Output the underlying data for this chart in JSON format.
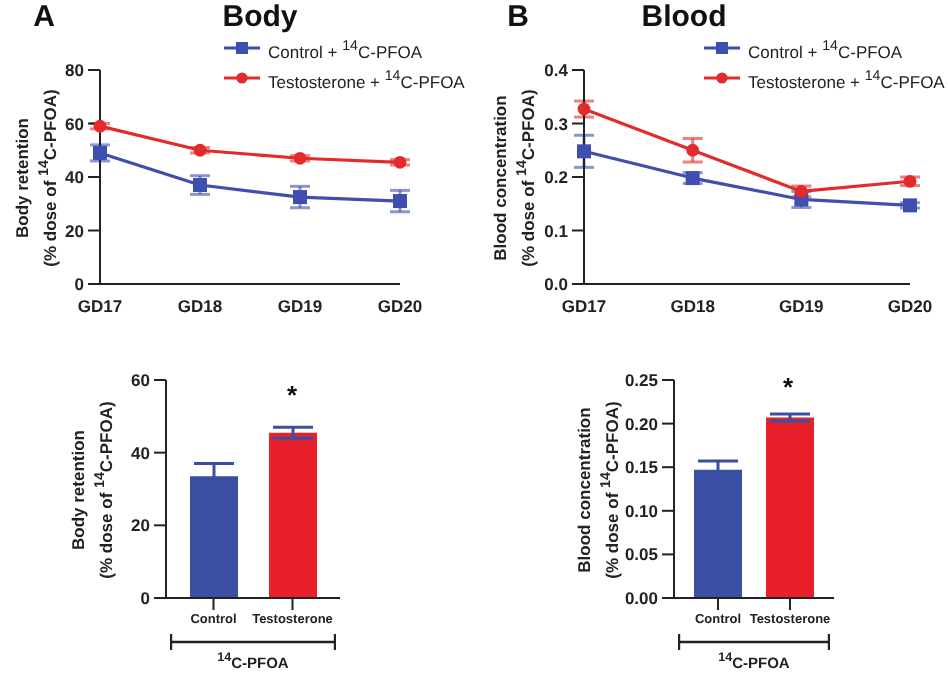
{
  "chart_data": [
    {
      "type": "line",
      "title": "Body",
      "annotations": [
        "A"
      ],
      "ylabel": "Body retention\n(% dose of $^{14}$C-PFOA)",
      "categories": [
        "GD17",
        "GD18",
        "GD19",
        "GD20"
      ],
      "series": [
        {
          "name": "Control + $^{14}$C-PFOA",
          "color": "#3f4fb0",
          "marker": "square",
          "values": [
            49,
            37,
            32.5,
            31
          ],
          "errors": [
            3,
            3.5,
            4,
            4
          ]
        },
        {
          "name": "Testosterone + $^{14}$C-PFOA",
          "color": "#e32b2b",
          "marker": "circle",
          "values": [
            59,
            50,
            47,
            45.5
          ],
          "errors": [
            1,
            1,
            1,
            1
          ]
        }
      ],
      "ylim": [
        0,
        80
      ],
      "yticks": [
        0,
        20,
        40,
        60,
        80
      ],
      "legend": "top right"
    },
    {
      "type": "line",
      "title": "Blood",
      "annotations": [
        "B"
      ],
      "ylabel": "Blood concentration\n(% dose of $^{14}$C-PFOA)",
      "categories": [
        "GD17",
        "GD18",
        "GD19",
        "GD20"
      ],
      "series": [
        {
          "name": "Control + $^{14}$C-PFOA",
          "color": "#3f4fb0",
          "marker": "square",
          "values": [
            0.248,
            0.198,
            0.158,
            0.147
          ],
          "errors": [
            0.03,
            0.01,
            0.015,
            0.005
          ]
        },
        {
          "name": "Testosterone + $^{14}$C-PFOA",
          "color": "#e32b2b",
          "marker": "circle",
          "values": [
            0.327,
            0.25,
            0.173,
            0.192
          ],
          "errors": [
            0.015,
            0.022,
            0.01,
            0.008
          ]
        }
      ],
      "ylim": [
        0,
        0.4
      ],
      "yticks": [
        {
          "value": 0,
          "label": "0.0"
        },
        0.1,
        0.2,
        0.3,
        0.4
      ],
      "legend": "top right"
    },
    {
      "type": "bar",
      "ylabel": "Body retention\n(% dose of $^{14}$C-PFOA)",
      "xlabel": "$^{14}$C-PFOA",
      "categories": [
        "Control",
        "Testosterone"
      ],
      "values": [
        33.5,
        45.5
      ],
      "errors": [
        3.5,
        1.5
      ],
      "colors": [
        "#3a4fa3",
        "#e8202a"
      ],
      "ylim": [
        0,
        60
      ],
      "yticks": [
        0,
        20,
        40,
        60
      ],
      "annotations": [
        "*"
      ]
    },
    {
      "type": "bar",
      "ylabel": "Blood concentration\n(% dose of $^{14}$C-PFOA)",
      "xlabel": "$^{14}$C-PFOA",
      "categories": [
        "Control",
        "Testosterone"
      ],
      "values": [
        0.147,
        0.207
      ],
      "errors": [
        0.01,
        0.004
      ],
      "colors": [
        "#3a4fa3",
        "#e8202a"
      ],
      "ylim": [
        0,
        0.25
      ],
      "yticks": [
        {
          "value": 0,
          "label": "0.00"
        },
        {
          "value": 0.05,
          "label": "0.05"
        },
        {
          "value": 0.1,
          "label": "0.10"
        },
        {
          "value": 0.15,
          "label": "0.15"
        },
        {
          "value": 0.2,
          "label": "0.20"
        },
        {
          "value": 0.25,
          "label": "0.25"
        }
      ],
      "annotations": [
        "*"
      ]
    }
  ]
}
